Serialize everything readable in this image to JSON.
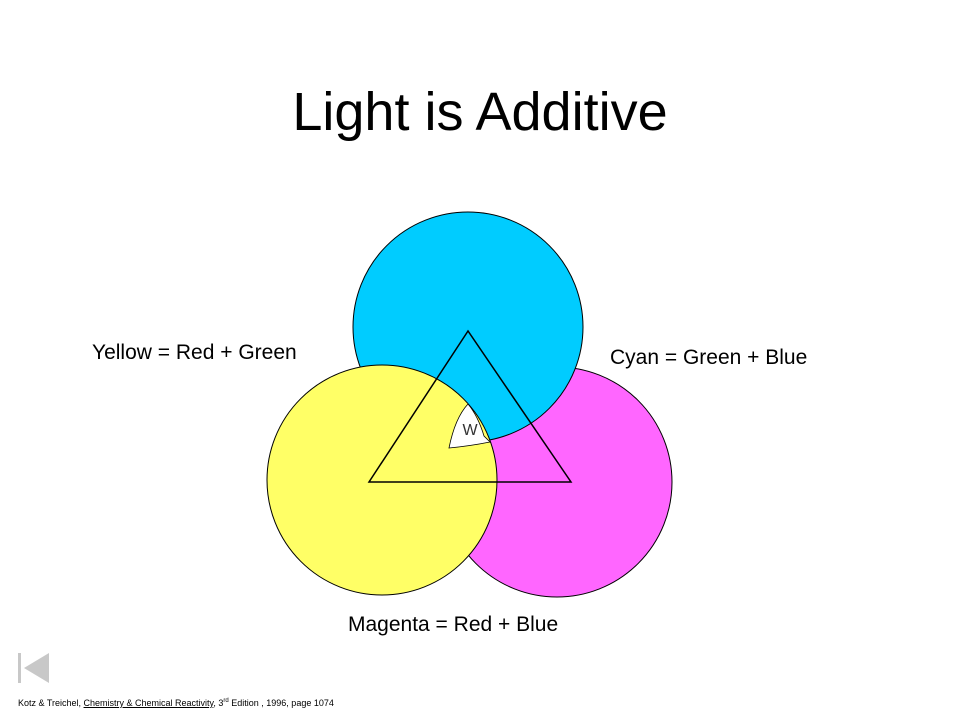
{
  "slide": {
    "title": "Light is Additive"
  },
  "diagram": {
    "labels": {
      "yellow": "Yellow = Red + Green",
      "cyan": "Cyan = Green + Blue",
      "magenta": "Magenta = Red + Blue",
      "white_center": "W"
    },
    "colors": {
      "cyan_circle": "#00ccff",
      "magenta_circle": "#ff66ff",
      "yellow_circle": "#ffff66",
      "white_region": "#ffffff",
      "outline": "#000000",
      "triangle": "#000000"
    }
  },
  "navigation": {
    "back_icon": "skip-back-icon"
  },
  "citation": {
    "authors": "Kotz & Treichel, ",
    "book": "Chemistry & Chemical Reactivity",
    "after_book": ", 3",
    "edition_sup": "rd",
    "rest": " Edition , 1996, page 1074"
  }
}
